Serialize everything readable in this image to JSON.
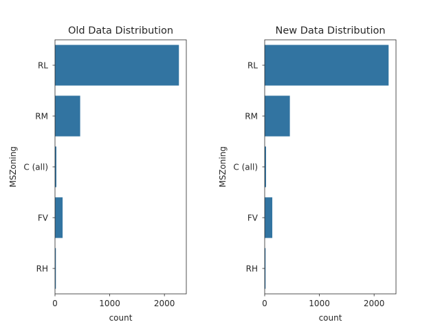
{
  "chart_data": [
    {
      "type": "bar",
      "orientation": "horizontal",
      "title": "Old Data Distribution",
      "xlabel": "count",
      "ylabel": "MSZoning",
      "categories": [
        "RL",
        "RM",
        "C (all)",
        "FV",
        "RH"
      ],
      "values": [
        2265,
        460,
        25,
        139,
        16
      ],
      "xlim": [
        0,
        2400
      ],
      "xticks": [
        0,
        1000,
        2000
      ],
      "grid": false,
      "color": "#3274a1"
    },
    {
      "type": "bar",
      "orientation": "horizontal",
      "title": "New Data Distribution",
      "xlabel": "count",
      "ylabel": "MSZoning",
      "categories": [
        "RL",
        "RM",
        "C (all)",
        "FV",
        "RH"
      ],
      "values": [
        2265,
        460,
        25,
        139,
        16
      ],
      "xlim": [
        0,
        2400
      ],
      "xticks": [
        0,
        1000,
        2000
      ],
      "grid": false,
      "color": "#3274a1"
    }
  ]
}
